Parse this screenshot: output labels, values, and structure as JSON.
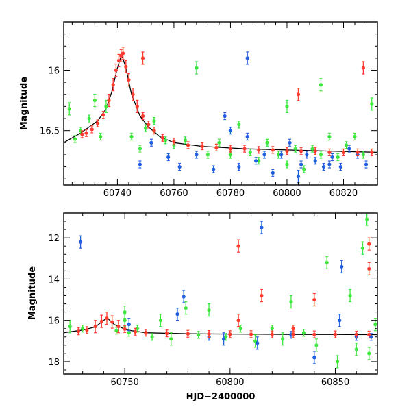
{
  "chart_data": [
    {
      "type": "scatter",
      "panel": "top",
      "xlabel": "",
      "ylabel": "Magnitude",
      "xlim": [
        60721,
        60832
      ],
      "ylim": [
        16.95,
        15.6
      ],
      "y_inverted": true,
      "xticks": [
        60740,
        60760,
        60780,
        60800,
        60820
      ],
      "xtick_labels": [
        "60740",
        "60760",
        "60780",
        "60800",
        "60820"
      ],
      "yticks": [
        16.0,
        16.5
      ],
      "ytick_labels": [
        "16",
        "16.5"
      ],
      "colors": {
        "red": "#ff3b2f",
        "blue": "#1f5fe0",
        "green": "#3fe63f",
        "curve": "#000000"
      },
      "model_curve": {
        "name": "",
        "points": [
          [
            60721,
            16.6
          ],
          [
            60724,
            16.56
          ],
          [
            60727,
            16.52
          ],
          [
            60730,
            16.47
          ],
          [
            60733,
            16.42
          ],
          [
            60736,
            16.32
          ],
          [
            60738,
            16.18
          ],
          [
            60740,
            15.98
          ],
          [
            60741.5,
            15.87
          ],
          [
            60743,
            15.98
          ],
          [
            60745,
            16.2
          ],
          [
            60748,
            16.38
          ],
          [
            60751,
            16.47
          ],
          [
            60755,
            16.55
          ],
          [
            60760,
            16.6
          ],
          [
            60770,
            16.63
          ],
          [
            60785,
            16.65
          ],
          [
            60800,
            16.66
          ],
          [
            60815,
            16.67
          ],
          [
            60832,
            16.68
          ]
        ]
      },
      "series": [
        {
          "name": "",
          "color": "red",
          "points": [
            [
              60727.5,
              16.53
            ],
            [
              60729,
              16.52
            ],
            [
              60731,
              16.49
            ],
            [
              60733,
              16.44
            ],
            [
              60735,
              16.37
            ],
            [
              60737,
              16.25
            ],
            [
              60738.5,
              16.12
            ],
            [
              60739.5,
              16.0
            ],
            [
              60740.5,
              15.92
            ],
            [
              60741.3,
              15.88
            ],
            [
              60742,
              15.86
            ],
            [
              60743,
              15.97
            ],
            [
              60744,
              16.08
            ],
            [
              60745.5,
              16.2
            ],
            [
              60747,
              16.3
            ],
            [
              60749,
              16.38
            ],
            [
              60751,
              16.45
            ],
            [
              60753,
              16.5
            ],
            [
              60756,
              16.56
            ],
            [
              60760,
              16.59
            ],
            [
              60765,
              16.62
            ],
            [
              60770,
              16.63
            ],
            [
              60775,
              16.64
            ],
            [
              60780,
              16.65
            ],
            [
              60785,
              16.65
            ],
            [
              60790,
              16.66
            ],
            [
              60795,
              16.66
            ],
            [
              60800,
              16.67
            ],
            [
              60805,
              16.67
            ],
            [
              60810,
              16.67
            ],
            [
              60815,
              16.68
            ],
            [
              60820,
              16.68
            ],
            [
              60825,
              16.68
            ],
            [
              60830,
              16.68
            ],
            [
              60804,
              16.2
            ],
            [
              60827,
              15.98
            ],
            [
              60749,
              15.9
            ]
          ]
        },
        {
          "name": "",
          "color": "blue",
          "points": [
            [
              60748,
              16.78
            ],
            [
              60752,
              16.6
            ],
            [
              60758,
              16.72
            ],
            [
              60762,
              16.8
            ],
            [
              60768,
              16.7
            ],
            [
              60774,
              16.82
            ],
            [
              60778,
              16.38
            ],
            [
              60780,
              16.5
            ],
            [
              60783,
              16.8
            ],
            [
              60786,
              16.55
            ],
            [
              60789,
              16.75
            ],
            [
              60792,
              16.7
            ],
            [
              60795,
              16.85
            ],
            [
              60798,
              16.7
            ],
            [
              60801,
              16.6
            ],
            [
              60804,
              16.88
            ],
            [
              60807,
              16.7
            ],
            [
              60810,
              16.75
            ],
            [
              60813,
              16.8
            ],
            [
              60816,
              16.72
            ],
            [
              60819,
              16.8
            ],
            [
              60822,
              16.65
            ],
            [
              60825,
              16.7
            ],
            [
              60828,
              16.78
            ],
            [
              60805,
              16.78
            ],
            [
              60815,
              16.78
            ],
            [
              60786,
              15.9
            ]
          ]
        },
        {
          "name": "",
          "color": "green",
          "points": [
            [
              60723,
              16.32
            ],
            [
              60725,
              16.57
            ],
            [
              60727,
              16.5
            ],
            [
              60730,
              16.4
            ],
            [
              60732,
              16.25
            ],
            [
              60734,
              16.55
            ],
            [
              60736,
              16.3
            ],
            [
              60745,
              16.55
            ],
            [
              60748,
              16.65
            ],
            [
              60750,
              16.48
            ],
            [
              60753,
              16.42
            ],
            [
              60757,
              16.58
            ],
            [
              60760,
              16.62
            ],
            [
              60764,
              16.58
            ],
            [
              60768,
              15.98
            ],
            [
              60772,
              16.7
            ],
            [
              60776,
              16.6
            ],
            [
              60780,
              16.7
            ],
            [
              60783,
              16.45
            ],
            [
              60787,
              16.68
            ],
            [
              60790,
              16.75
            ],
            [
              60793,
              16.6
            ],
            [
              60797,
              16.7
            ],
            [
              60800,
              16.78
            ],
            [
              60803,
              16.65
            ],
            [
              60806,
              16.82
            ],
            [
              60809,
              16.65
            ],
            [
              60812,
              16.7
            ],
            [
              60815,
              16.55
            ],
            [
              60818,
              16.72
            ],
            [
              60821,
              16.62
            ],
            [
              60824,
              16.55
            ],
            [
              60827,
              16.7
            ],
            [
              60830,
              16.28
            ],
            [
              60800,
              16.3
            ],
            [
              60812,
              16.12
            ]
          ]
        }
      ]
    },
    {
      "type": "scatter",
      "panel": "bottom",
      "xlabel": "HJD−2400000",
      "ylabel": "Magnitude",
      "xlim": [
        60721,
        60870
      ],
      "ylim": [
        18.6,
        10.8
      ],
      "y_inverted": true,
      "xticks": [
        60750,
        60800,
        60850
      ],
      "xtick_labels": [
        "60750",
        "60800",
        "60850"
      ],
      "yticks": [
        12,
        14,
        16,
        18
      ],
      "ytick_labels": [
        "12",
        "14",
        "16",
        "18"
      ],
      "colors": {
        "red": "#ff3b2f",
        "blue": "#1f5fe0",
        "green": "#3fe63f",
        "curve": "#000000"
      },
      "model_curve": {
        "name": "",
        "points": [
          [
            60721,
            16.6
          ],
          [
            60730,
            16.47
          ],
          [
            60736,
            16.32
          ],
          [
            60740,
            16.0
          ],
          [
            60741.5,
            15.87
          ],
          [
            60745,
            16.2
          ],
          [
            60751,
            16.47
          ],
          [
            60760,
            16.6
          ],
          [
            60780,
            16.65
          ],
          [
            60800,
            16.66
          ],
          [
            60830,
            16.68
          ],
          [
            60850,
            16.68
          ],
          [
            60870,
            16.69
          ]
        ]
      },
      "series": [
        {
          "name": "",
          "color": "red",
          "points": [
            [
              60728,
              16.53
            ],
            [
              60732,
              16.47
            ],
            [
              60736,
              16.3
            ],
            [
              60739,
              16.05
            ],
            [
              60741.5,
              15.9
            ],
            [
              60744,
              16.08
            ],
            [
              60747,
              16.3
            ],
            [
              60750,
              16.42
            ],
            [
              60755,
              16.55
            ],
            [
              60760,
              16.6
            ],
            [
              60770,
              16.63
            ],
            [
              60780,
              16.65
            ],
            [
              60790,
              16.66
            ],
            [
              60800,
              16.67
            ],
            [
              60810,
              16.67
            ],
            [
              60820,
              16.68
            ],
            [
              60830,
              16.68
            ],
            [
              60840,
              16.68
            ],
            [
              60850,
              16.68
            ],
            [
              60860,
              16.69
            ],
            [
              60866,
              16.69
            ],
            [
              60804,
              12.4
            ],
            [
              60866,
              12.3
            ],
            [
              60866,
              13.5
            ],
            [
              60815,
              14.8
            ],
            [
              60840,
              15.0
            ],
            [
              60804,
              16.0
            ],
            [
              60830,
              16.4
            ]
          ]
        },
        {
          "name": "",
          "color": "blue",
          "points": [
            [
              60729,
              12.2
            ],
            [
              60815,
              11.5
            ],
            [
              60853,
              13.4
            ],
            [
              60778,
              14.85
            ],
            [
              60775,
              15.7
            ],
            [
              60752,
              16.2
            ],
            [
              60790,
              16.8
            ],
            [
              60797,
              16.9
            ],
            [
              60813,
              17.1
            ],
            [
              60829,
              16.7
            ],
            [
              60840,
              17.8
            ],
            [
              60852,
              16.0
            ],
            [
              60860,
              16.8
            ],
            [
              60867,
              16.8
            ]
          ]
        },
        {
          "name": "",
          "color": "green",
          "points": [
            [
              60724,
              16.3
            ],
            [
              60730,
              16.4
            ],
            [
              60746,
              16.5
            ],
            [
              60750,
              15.6
            ],
            [
              60752,
              16.6
            ],
            [
              60756,
              16.4
            ],
            [
              60763,
              16.8
            ],
            [
              60767,
              16.0
            ],
            [
              60772,
              16.9
            ],
            [
              60779,
              15.4
            ],
            [
              60785,
              16.7
            ],
            [
              60790,
              15.5
            ],
            [
              60798,
              16.8
            ],
            [
              60805,
              16.4
            ],
            [
              60812,
              17.0
            ],
            [
              60820,
              16.4
            ],
            [
              60825,
              16.9
            ],
            [
              60829,
              15.1
            ],
            [
              60835,
              16.6
            ],
            [
              60841,
              17.2
            ],
            [
              60846,
              13.2
            ],
            [
              60851,
              18.0
            ],
            [
              60857,
              14.8
            ],
            [
              60863,
              12.5
            ],
            [
              60865,
              11.1
            ],
            [
              60869,
              16.2
            ],
            [
              60860,
              17.4
            ],
            [
              60866,
              17.6
            ],
            [
              60750,
              16.0
            ]
          ]
        }
      ]
    }
  ]
}
